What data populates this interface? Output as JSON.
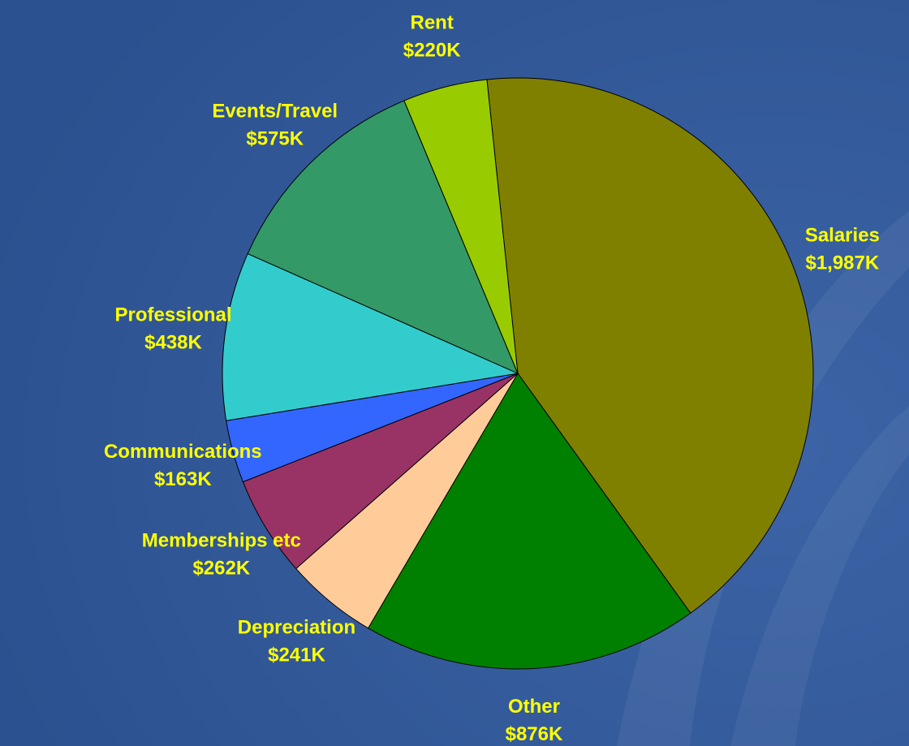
{
  "chart_data": {
    "type": "pie",
    "categories": [
      "Salaries",
      "Other",
      "Depreciation",
      "Memberships etc",
      "Communications",
      "Professional",
      "Events/Travel",
      "Rent"
    ],
    "values": [
      1987,
      876,
      241,
      262,
      163,
      438,
      575,
      220
    ],
    "value_labels": [
      "$1,987K",
      "$876K",
      "$241K",
      "$262K",
      "$163K",
      "$438K",
      "$575K",
      "$220K"
    ],
    "colors": [
      "#808000",
      "#008000",
      "#ffcc99",
      "#993366",
      "#3366ff",
      "#33cccc",
      "#339966",
      "#99cc00"
    ]
  }
}
